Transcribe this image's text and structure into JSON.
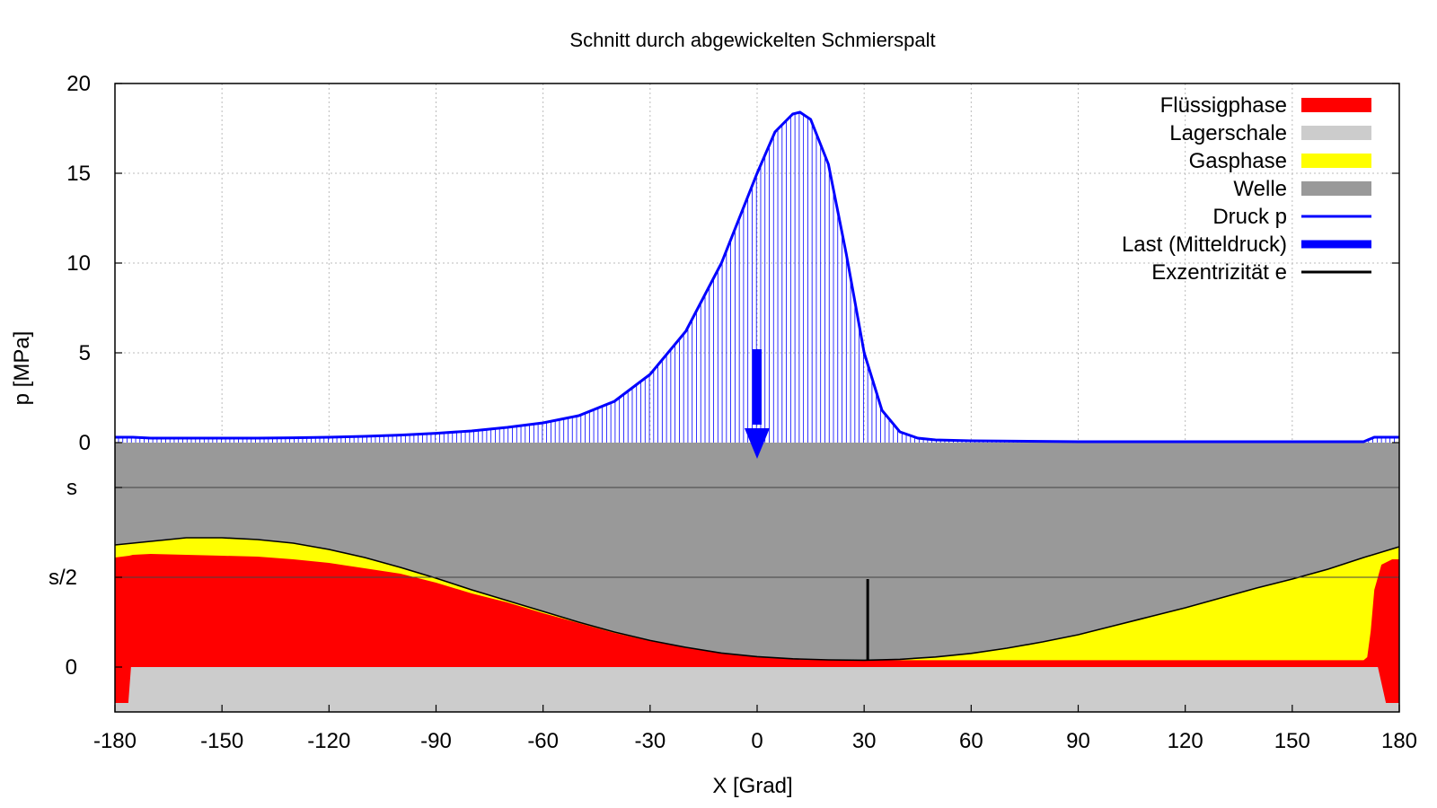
{
  "chart_data": {
    "type": "area",
    "title": "Schnitt durch abgewickelten Schmierspalt",
    "xlabel": "X [Grad]",
    "ylabel": "p [MPa]",
    "xlim": [
      -180,
      180
    ],
    "ylim": [
      0,
      20
    ],
    "x_ticks": [
      "-180",
      "-150",
      "-120",
      "-90",
      "-60",
      "-30",
      "0",
      "30",
      "60",
      "90",
      "120",
      "150",
      "180"
    ],
    "y_ticks_pressure": [
      "0",
      "5",
      "10",
      "15",
      "20"
    ],
    "y_ticks_gap": [
      "0",
      "s/2",
      "s"
    ],
    "grid": true,
    "legend_position": "top-right",
    "legend": [
      {
        "label": "Flüssigphase",
        "color": "#ff0000",
        "style": "box"
      },
      {
        "label": "Lagerschale",
        "color": "#cccccc",
        "style": "box"
      },
      {
        "label": "Gasphase",
        "color": "#ffff00",
        "style": "box"
      },
      {
        "label": "Welle",
        "color": "#999999",
        "style": "box"
      },
      {
        "label": "Druck p",
        "color": "#0000ff",
        "style": "line"
      },
      {
        "label": "Last (Mitteldruck)",
        "color": "#0000ff",
        "style": "thickline"
      },
      {
        "label": "Exzentrizität e",
        "color": "#000000",
        "style": "line"
      }
    ],
    "pressure": {
      "x": [
        -180,
        -175,
        -170,
        -160,
        -150,
        -140,
        -130,
        -120,
        -110,
        -100,
        -90,
        -80,
        -70,
        -60,
        -50,
        -40,
        -30,
        -20,
        -10,
        0,
        5,
        10,
        12,
        15,
        20,
        25,
        30,
        35,
        40,
        45,
        50,
        60,
        90,
        120,
        150,
        170,
        173,
        175,
        180
      ],
      "y": [
        0.3,
        0.3,
        0.25,
        0.25,
        0.25,
        0.25,
        0.27,
        0.3,
        0.35,
        0.42,
        0.52,
        0.65,
        0.85,
        1.1,
        1.5,
        2.3,
        3.8,
        6.2,
        10.0,
        15.0,
        17.3,
        18.3,
        18.4,
        18.0,
        15.5,
        10.5,
        5.0,
        1.8,
        0.6,
        0.25,
        0.15,
        0.1,
        0.05,
        0.05,
        0.05,
        0.05,
        0.3,
        0.3,
        0.3
      ]
    },
    "gap_height_s": {
      "x": [
        -180,
        -170,
        -160,
        -150,
        -140,
        -130,
        -120,
        -110,
        -100,
        -90,
        -80,
        -70,
        -60,
        -50,
        -40,
        -30,
        -20,
        -10,
        0,
        10,
        20,
        30,
        40,
        50,
        60,
        70,
        80,
        90,
        100,
        110,
        120,
        130,
        140,
        150,
        160,
        170,
        180
      ],
      "y": [
        0.68,
        0.7,
        0.72,
        0.72,
        0.71,
        0.69,
        0.655,
        0.61,
        0.555,
        0.495,
        0.43,
        0.37,
        0.31,
        0.25,
        0.195,
        0.148,
        0.11,
        0.078,
        0.058,
        0.046,
        0.04,
        0.038,
        0.043,
        0.056,
        0.076,
        0.105,
        0.14,
        0.18,
        0.23,
        0.28,
        0.33,
        0.385,
        0.44,
        0.49,
        0.545,
        0.61,
        0.67
      ]
    },
    "liquid_height_s": {
      "x": [
        -180,
        -176,
        -175,
        -170,
        -160,
        -150,
        -140,
        -130,
        -120,
        -110,
        -100,
        -90,
        -80,
        -70,
        -60,
        -50,
        -40,
        -30,
        -20,
        -10,
        0,
        10,
        20,
        30,
        40,
        60,
        90,
        120,
        150,
        168,
        170,
        171,
        172,
        173,
        175,
        178,
        180
      ],
      "y": [
        0.61,
        0.62,
        0.625,
        0.63,
        0.625,
        0.62,
        0.615,
        0.6,
        0.58,
        0.55,
        0.52,
        0.47,
        0.41,
        0.36,
        0.3,
        0.245,
        0.19,
        0.145,
        0.108,
        0.075,
        0.055,
        0.045,
        0.04,
        0.038,
        0.038,
        0.038,
        0.038,
        0.038,
        0.038,
        0.038,
        0.038,
        0.055,
        0.2,
        0.43,
        0.57,
        0.6,
        0.6
      ]
    },
    "liquid_cavity_dips_x": [
      [
        -178.5,
        -175.5
      ],
      [
        175.5,
        178.5
      ]
    ],
    "load_arrow": {
      "x": 0,
      "y": 5.2
    },
    "eccentricity": {
      "x": 31,
      "height_s": 0.49
    }
  }
}
